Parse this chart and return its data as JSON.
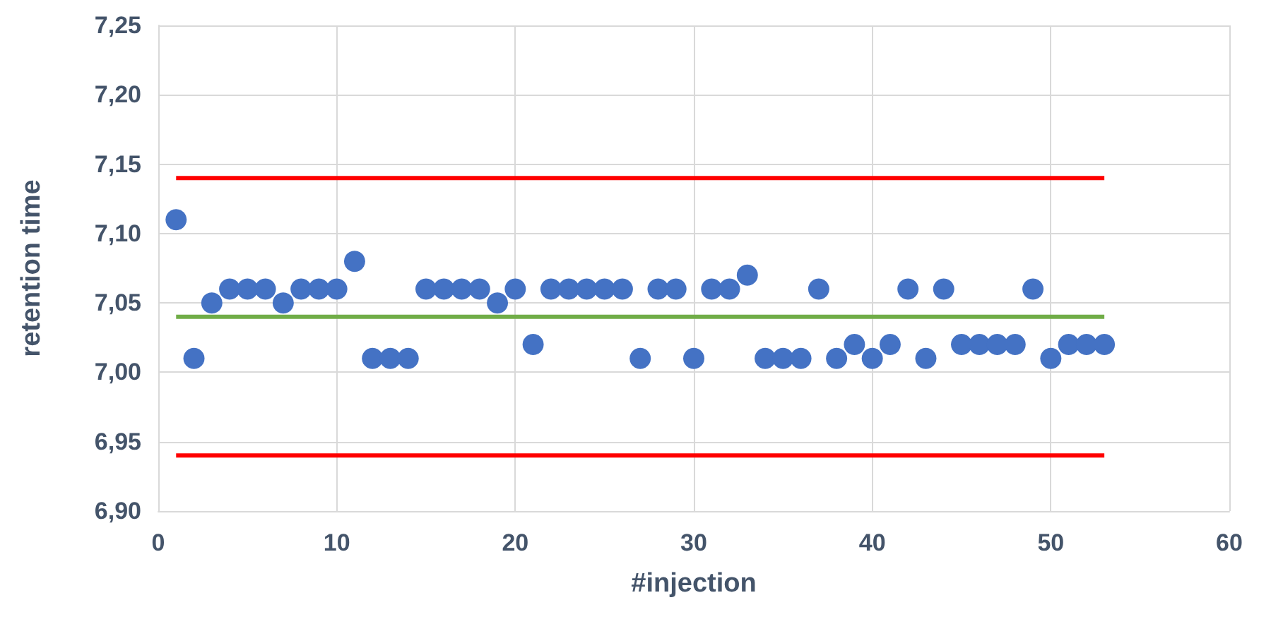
{
  "chart_data": {
    "type": "scatter",
    "xlabel": "#injection",
    "ylabel": "retention time",
    "xlim": [
      0,
      60
    ],
    "xticks": [
      0,
      10,
      20,
      30,
      40,
      50,
      60
    ],
    "ylim": [
      6.9,
      7.25
    ],
    "yticks": [
      {
        "value": 6.9,
        "label": "6,90"
      },
      {
        "value": 6.95,
        "label": "6,95"
      },
      {
        "value": 7.0,
        "label": "7,00"
      },
      {
        "value": 7.05,
        "label": "7,05"
      },
      {
        "value": 7.1,
        "label": "7,10"
      },
      {
        "value": 7.15,
        "label": "7,15"
      },
      {
        "value": 7.2,
        "label": "7,20"
      },
      {
        "value": 7.25,
        "label": "7,25"
      }
    ],
    "grid": true,
    "marker": "circle",
    "series": [
      {
        "type": "line",
        "color": "#ff0000",
        "x": [
          1,
          53
        ],
        "values": [
          7.14,
          7.14
        ],
        "marker": "none",
        "line_style": "solid"
      },
      {
        "type": "line",
        "color": "#ff0000",
        "x": [
          1,
          53
        ],
        "values": [
          6.94,
          6.94
        ],
        "marker": "none",
        "line_style": "solid"
      },
      {
        "type": "line",
        "color": "#70ad47",
        "x": [
          1,
          53
        ],
        "values": [
          7.04,
          7.04
        ],
        "marker": "none",
        "line_style": "solid"
      },
      {
        "color": "#4472c4",
        "x": [
          1,
          2,
          3,
          4,
          5,
          6,
          7,
          8,
          9,
          10,
          11,
          12,
          13,
          14,
          15,
          16,
          17,
          18,
          19,
          20,
          21,
          22,
          23,
          24,
          25,
          26,
          27,
          28,
          29,
          30,
          31,
          32,
          33,
          34,
          35,
          36,
          37,
          38,
          39,
          40,
          41,
          42,
          43,
          44,
          45,
          46,
          47,
          48,
          49,
          50,
          51,
          52,
          53
        ],
        "values": [
          7.11,
          7.01,
          7.05,
          7.06,
          7.06,
          7.06,
          7.05,
          7.06,
          7.06,
          7.06,
          7.08,
          7.01,
          7.01,
          7.01,
          7.06,
          7.06,
          7.06,
          7.06,
          7.05,
          7.06,
          7.02,
          7.06,
          7.06,
          7.06,
          7.06,
          7.06,
          7.01,
          7.06,
          7.06,
          7.01,
          7.06,
          7.06,
          7.07,
          7.01,
          7.01,
          7.01,
          7.06,
          7.01,
          7.02,
          7.01,
          7.02,
          7.06,
          7.01,
          7.06,
          7.02,
          7.02,
          7.02,
          7.02,
          7.06,
          7.01,
          7.02,
          7.02,
          7.02
        ]
      }
    ]
  }
}
